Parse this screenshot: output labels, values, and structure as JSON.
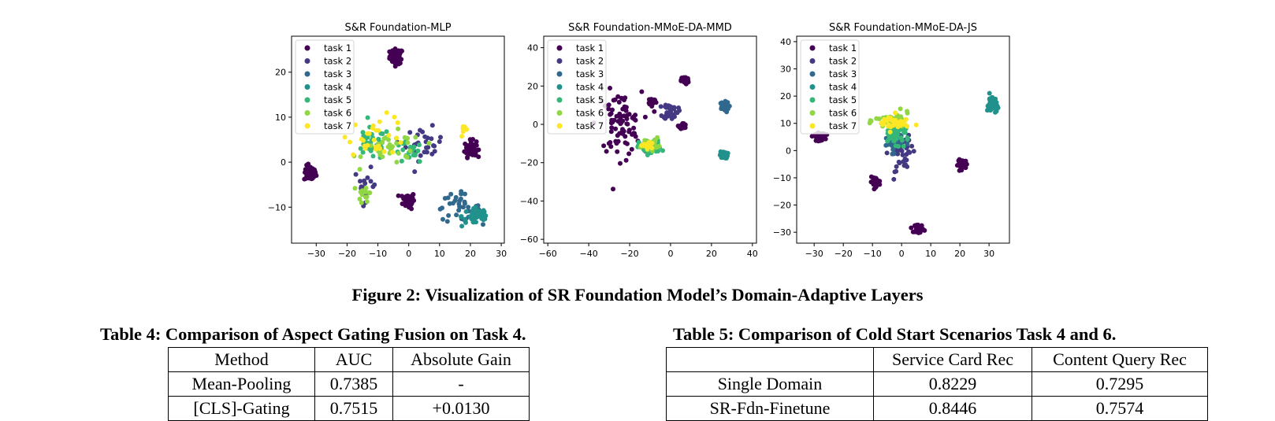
{
  "figure": {
    "caption": "Figure 2: Visualization of SR Foundation Model’s Domain-Adaptive Layers",
    "legend": [
      "task 1",
      "task 2",
      "task 3",
      "task 4",
      "task 5",
      "task 6",
      "task 7"
    ],
    "colors": [
      "#440154",
      "#443983",
      "#31688e",
      "#21918c",
      "#35b779",
      "#90d743",
      "#fde725"
    ]
  },
  "chart_data": [
    {
      "type": "scatter",
      "title": "S&R Foundation-MLP",
      "xlim": [
        -38,
        31
      ],
      "ylim": [
        -18,
        28
      ],
      "xticks": [
        -30,
        -20,
        -10,
        0,
        10,
        20,
        30
      ],
      "yticks": [
        -10,
        0,
        10,
        20
      ],
      "legend_position": "top-left",
      "grid": false,
      "clusters": [
        {
          "task": 1,
          "x": -4,
          "y": 23.5,
          "sx": 1.8,
          "sy": 1.4,
          "n": 60
        },
        {
          "task": 1,
          "x": -32,
          "y": -2.5,
          "sx": 1.6,
          "sy": 1.4,
          "n": 60
        },
        {
          "task": 1,
          "x": 0,
          "y": -8.5,
          "sx": 1.6,
          "sy": 1.5,
          "n": 60
        },
        {
          "task": 1,
          "x": 20,
          "y": 3,
          "sx": 1.6,
          "sy": 1.5,
          "n": 60
        },
        {
          "task": 2,
          "x": 5,
          "y": 4,
          "sx": 5,
          "sy": 3,
          "n": 30
        },
        {
          "task": 2,
          "x": -14,
          "y": -5,
          "sx": 3,
          "sy": 3,
          "n": 18
        },
        {
          "task": 3,
          "x": 16,
          "y": -10,
          "sx": 6,
          "sy": 2.5,
          "n": 35
        },
        {
          "task": 4,
          "x": 22,
          "y": -12,
          "sx": 4,
          "sy": 2,
          "n": 40
        },
        {
          "task": 5,
          "x": -12,
          "y": 4,
          "sx": 5,
          "sy": 3,
          "n": 35
        },
        {
          "task": 5,
          "x": 0,
          "y": 2,
          "sx": 4,
          "sy": 2,
          "n": 20
        },
        {
          "task": 6,
          "x": -5,
          "y": 3,
          "sx": 8,
          "sy": 3,
          "n": 35
        },
        {
          "task": 6,
          "x": -14,
          "y": -7,
          "sx": 2,
          "sy": 2,
          "n": 15
        },
        {
          "task": 7,
          "x": -10,
          "y": 6,
          "sx": 8,
          "sy": 3.5,
          "n": 30
        },
        {
          "task": 7,
          "x": 18,
          "y": 7,
          "sx": 1,
          "sy": 1,
          "n": 8
        }
      ]
    },
    {
      "type": "scatter",
      "title": "S&R Foundation-MMoE-DA-MMD",
      "xlim": [
        -62,
        42
      ],
      "ylim": [
        -62,
        46
      ],
      "xticks": [
        -60,
        -40,
        -20,
        0,
        20,
        40
      ],
      "yticks": [
        -60,
        -40,
        -20,
        0,
        20,
        40
      ],
      "legend_position": "top-left",
      "grid": false,
      "clusters": [
        {
          "task": 1,
          "x": -25,
          "y": 0,
          "sx": 9,
          "sy": 14,
          "n": 85
        },
        {
          "task": 1,
          "x": 7,
          "y": 23,
          "sx": 1.5,
          "sy": 1.8,
          "n": 40
        },
        {
          "task": 1,
          "x": -9,
          "y": 12,
          "sx": 1.5,
          "sy": 1.5,
          "n": 35
        },
        {
          "task": 1,
          "x": 6,
          "y": -1,
          "sx": 1.3,
          "sy": 1.3,
          "n": 30
        },
        {
          "task": 2,
          "x": 0,
          "y": 7,
          "sx": 3,
          "sy": 3.5,
          "n": 40
        },
        {
          "task": 3,
          "x": 26,
          "y": 9,
          "sx": 2,
          "sy": 2.2,
          "n": 45
        },
        {
          "task": 4,
          "x": 26,
          "y": -16,
          "sx": 1.5,
          "sy": 1.5,
          "n": 40
        },
        {
          "task": 5,
          "x": -10,
          "y": -12,
          "sx": 4.5,
          "sy": 3,
          "n": 90
        },
        {
          "task": 6,
          "x": -10,
          "y": -10,
          "sx": 3.5,
          "sy": 2.5,
          "n": 20
        },
        {
          "task": 7,
          "x": -11,
          "y": -11,
          "sx": 3,
          "sy": 2,
          "n": 12
        }
      ]
    },
    {
      "type": "scatter",
      "title": "S&R Foundation-MMoE-DA-JS",
      "xlim": [
        -36,
        37
      ],
      "ylim": [
        -34,
        42
      ],
      "xticks": [
        -30,
        -20,
        -10,
        0,
        10,
        20,
        30
      ],
      "yticks": [
        -30,
        -20,
        -10,
        0,
        10,
        20,
        30,
        40
      ],
      "legend_position": "top-left",
      "grid": false,
      "clusters": [
        {
          "task": 1,
          "x": -28,
          "y": 5,
          "sx": 1.5,
          "sy": 1.2,
          "n": 40
        },
        {
          "task": 1,
          "x": -9,
          "y": -11.5,
          "sx": 1.4,
          "sy": 1.4,
          "n": 40
        },
        {
          "task": 1,
          "x": 21,
          "y": -5,
          "sx": 1.4,
          "sy": 1.4,
          "n": 40
        },
        {
          "task": 1,
          "x": 6,
          "y": -28.5,
          "sx": 1.2,
          "sy": 1.3,
          "n": 35
        },
        {
          "task": 2,
          "x": 0,
          "y": 0,
          "sx": 3.5,
          "sy": 6,
          "n": 55
        },
        {
          "task": 3,
          "x": -3,
          "y": 3,
          "sx": 3,
          "sy": 3,
          "n": 25
        },
        {
          "task": 4,
          "x": 31,
          "y": 17,
          "sx": 1.3,
          "sy": 3,
          "n": 45
        },
        {
          "task": 5,
          "x": -2,
          "y": 6,
          "sx": 4,
          "sy": 3,
          "n": 45
        },
        {
          "task": 6,
          "x": -3,
          "y": 11,
          "sx": 5,
          "sy": 2.5,
          "n": 40
        },
        {
          "task": 7,
          "x": -3,
          "y": 10,
          "sx": 4.5,
          "sy": 2.5,
          "n": 35
        }
      ]
    }
  ],
  "table4": {
    "title": "Table 4: Comparison of Aspect Gating Fusion on Task 4.",
    "headers": [
      "Method",
      "AUC",
      "Absolute Gain"
    ],
    "rows": [
      [
        "Mean-Pooling",
        "0.7385",
        "-"
      ],
      [
        "[CLS]-Gating",
        "0.7515",
        "+0.0130"
      ]
    ]
  },
  "table5": {
    "title": "Table 5: Comparison of Cold Start Scenarios Task 4 and 6.",
    "headers": [
      "",
      "Service Card Rec",
      "Content Query Rec"
    ],
    "rows": [
      [
        "Single Domain",
        "0.8229",
        "0.7295"
      ],
      [
        "SR-Fdn-Finetune",
        "0.8446",
        "0.7574"
      ]
    ]
  }
}
